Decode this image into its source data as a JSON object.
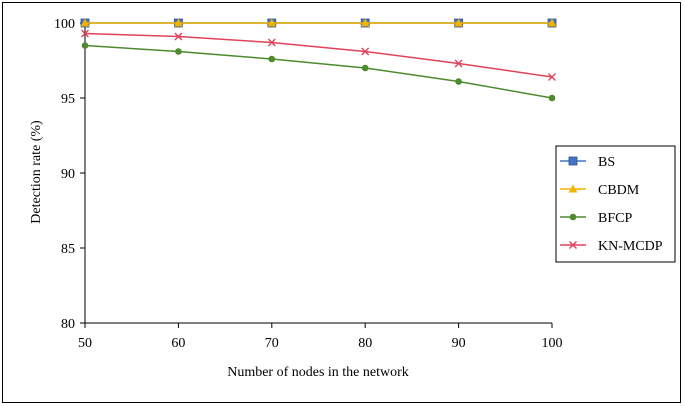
{
  "chart_data": {
    "type": "line",
    "title": "",
    "xlabel": "Number of nodes in the network",
    "ylabel": "Detection rate (%)",
    "x": [
      50,
      60,
      70,
      80,
      90,
      100
    ],
    "xlim": [
      50,
      100
    ],
    "ylim": [
      80,
      100
    ],
    "x_ticks": [
      "50",
      "60",
      "70",
      "80",
      "90",
      "100"
    ],
    "y_ticks": [
      "80",
      "85",
      "90",
      "95",
      "100"
    ],
    "grid": false,
    "legend_position": "right",
    "series": [
      {
        "name": "BS",
        "values": [
          100,
          100,
          100,
          100,
          100,
          100
        ],
        "color": "#4472C4",
        "marker": "square"
      },
      {
        "name": "CBDM",
        "values": [
          100,
          100,
          100,
          100,
          100,
          100
        ],
        "color": "#F0B400",
        "marker": "triangle"
      },
      {
        "name": "BFCP",
        "values": [
          98.5,
          98.1,
          97.6,
          97.0,
          96.1,
          95.0
        ],
        "color": "#4E8A2E",
        "marker": "circle"
      },
      {
        "name": "KN-MCDP",
        "values": [
          99.3,
          99.1,
          98.7,
          98.1,
          97.3,
          96.4
        ],
        "color": "#E0435A",
        "marker": "x"
      }
    ]
  }
}
